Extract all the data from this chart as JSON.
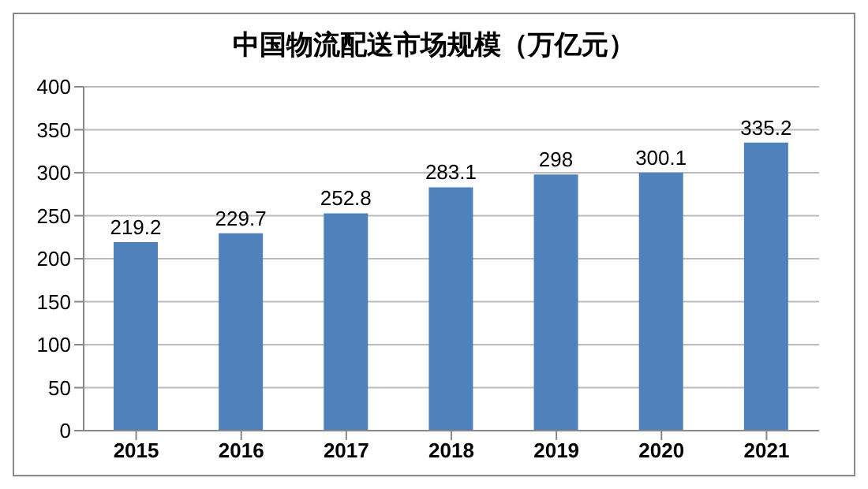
{
  "chart_data": {
    "type": "bar",
    "title": "中国物流配送市场规模（万亿元）",
    "categories": [
      "2015",
      "2016",
      "2017",
      "2018",
      "2019",
      "2020",
      "2021"
    ],
    "values": [
      219.2,
      229.7,
      252.8,
      283.1,
      298,
      300.1,
      335.2
    ],
    "color": "#4f81bd",
    "ylim": [
      0,
      400
    ],
    "yticks": [
      0,
      50,
      100,
      150,
      200,
      250,
      300,
      350,
      400
    ],
    "grid": "y",
    "data_labels": true
  }
}
